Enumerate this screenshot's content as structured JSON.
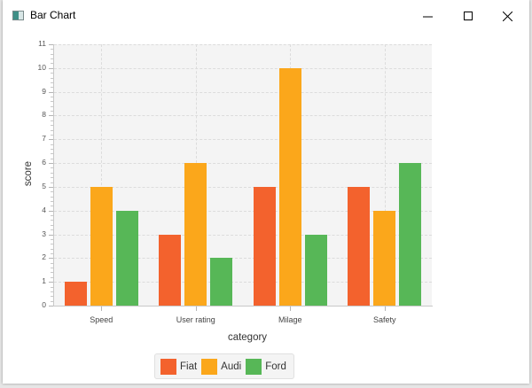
{
  "window": {
    "title": "Bar Chart",
    "controls": [
      "minimize",
      "maximize",
      "close"
    ]
  },
  "colors": {
    "Fiat": "#f3622d",
    "Audi": "#fba71b",
    "Ford": "#57b757",
    "plot_background": "#f4f4f4"
  },
  "chart_data": {
    "type": "bar",
    "title": "",
    "xlabel": "category",
    "ylabel": "score",
    "categories": [
      "Speed",
      "User rating",
      "Milage",
      "Safety"
    ],
    "series": [
      {
        "name": "Fiat",
        "values": [
          1,
          3,
          5,
          5
        ]
      },
      {
        "name": "Audi",
        "values": [
          5,
          6,
          10,
          4
        ]
      },
      {
        "name": "Ford",
        "values": [
          4,
          2,
          3,
          6
        ]
      }
    ],
    "ylim": [
      0,
      11
    ],
    "yticks": [
      "0",
      "1",
      "2",
      "3",
      "4",
      "5",
      "6",
      "7",
      "8",
      "9",
      "10",
      "11"
    ],
    "grid": true,
    "legend_position": "bottom"
  },
  "legend": {
    "items": [
      {
        "label": "Fiat"
      },
      {
        "label": "Audi"
      },
      {
        "label": "Ford"
      }
    ]
  }
}
